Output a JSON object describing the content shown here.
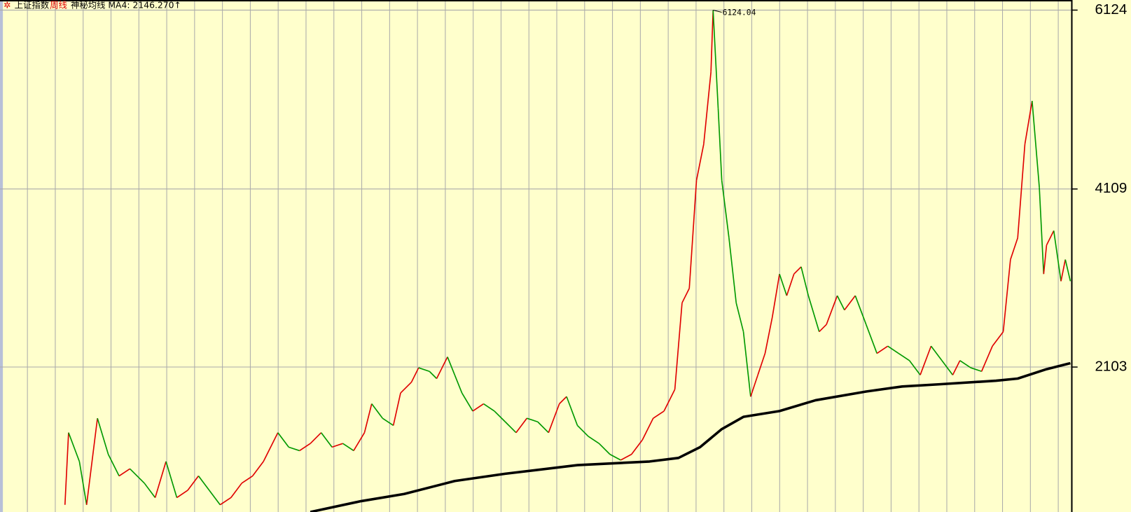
{
  "header": {
    "symbol": "上证指数",
    "period": "周线",
    "indicator": "神秘均线 MA4: 2146.270↑"
  },
  "chart_data": {
    "type": "line",
    "xlim": [
      -90,
      1395
    ],
    "ylim": [
      470,
      6238
    ],
    "yticks": [
      6124,
      4109,
      2103
    ],
    "grid": true,
    "annotation": "6124.04",
    "series": [
      {
        "up_color": "#e00000",
        "down_color": "#009900",
        "x": [
          0,
          5,
          20,
          30,
          45,
          60,
          75,
          90,
          110,
          125,
          140,
          155,
          170,
          185,
          200,
          215,
          230,
          245,
          260,
          275,
          295,
          310,
          325,
          340,
          355,
          370,
          385,
          400,
          415,
          425,
          440,
          455,
          465,
          480,
          490,
          505,
          515,
          530,
          540,
          550,
          565,
          580,
          595,
          610,
          625,
          640,
          655,
          670,
          685,
          695,
          710,
          725,
          740,
          755,
          770,
          785,
          800,
          815,
          830,
          845,
          855,
          865,
          875,
          885,
          895,
          898,
          905,
          910,
          920,
          930,
          940,
          950,
          960,
          970,
          980,
          990,
          1000,
          1010,
          1020,
          1030,
          1045,
          1055,
          1070,
          1080,
          1095,
          1110,
          1125,
          1140,
          1155,
          1170,
          1185,
          1200,
          1215,
          1230,
          1240,
          1255,
          1270,
          1285,
          1300,
          1310,
          1320,
          1330,
          1340,
          1350,
          1356,
          1360,
          1370,
          1380,
          1386,
          1393
        ],
        "values": [
          551,
          1364,
          1039,
          551,
          1526,
          1120,
          876,
          957,
          795,
          632,
          1039,
          632,
          714,
          876,
          714,
          551,
          632,
          795,
          876,
          1039,
          1364,
          1201,
          1161,
          1242,
          1364,
          1201,
          1242,
          1161,
          1364,
          1689,
          1526,
          1445,
          1811,
          1932,
          2095,
          2054,
          1973,
          2217,
          2014,
          1811,
          1607,
          1689,
          1607,
          1486,
          1364,
          1526,
          1486,
          1364,
          1689,
          1770,
          1445,
          1323,
          1242,
          1120,
          1055,
          1120,
          1282,
          1526,
          1607,
          1851,
          2826,
          2989,
          4207,
          4614,
          5426,
          6124,
          5020,
          4207,
          3557,
          2826,
          2501,
          1770,
          2014,
          2257,
          2664,
          3151,
          2907,
          3151,
          3232,
          2907,
          2501,
          2582,
          2907,
          2745,
          2907,
          2582,
          2257,
          2339,
          2257,
          2176,
          2014,
          2339,
          2176,
          2014,
          2176,
          2095,
          2054,
          2339,
          2501,
          3314,
          3557,
          4614,
          5101,
          4126,
          3151,
          3476,
          3639,
          3070,
          3314,
          3070
        ]
      },
      {
        "color": "#000000",
        "x": [
          340,
          410,
          470,
          540,
          610,
          710,
          810,
          850,
          880,
          910,
          940,
          990,
          1040,
          1110,
          1160,
          1210,
          1290,
          1320,
          1360,
          1393
        ],
        "values": [
          470,
          592,
          673,
          819,
          901,
          998,
          1039,
          1079,
          1201,
          1404,
          1542,
          1607,
          1729,
          1827,
          1884,
          1908,
          1949,
          1973,
          2079,
          2146.27
        ]
      }
    ]
  }
}
